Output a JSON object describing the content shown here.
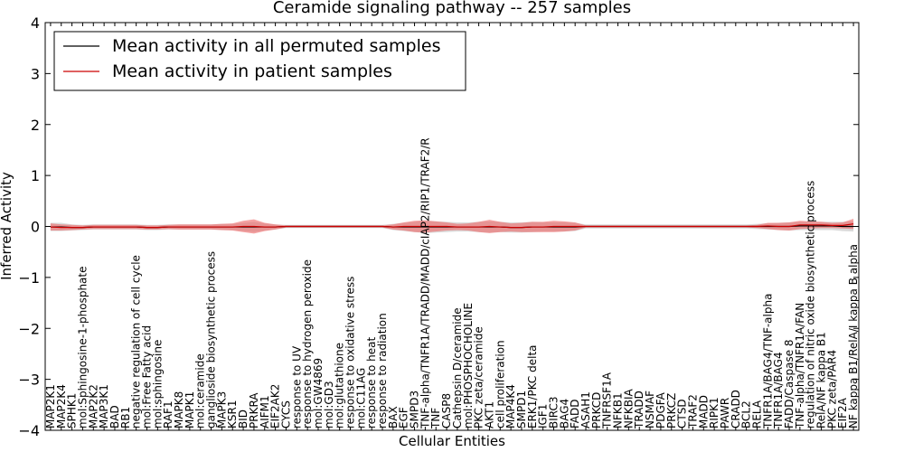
{
  "chart_data": {
    "type": "line",
    "title": "Ceramide signaling pathway -- 257 samples",
    "xlabel": "Cellular Entities",
    "ylabel": "Inferred Activity",
    "ylim": [
      -4,
      4
    ],
    "yticks": [
      -4,
      -3,
      -2,
      -1,
      0,
      1,
      2,
      3,
      4
    ],
    "ytick_labels": [
      "−4",
      "−3",
      "−2",
      "−1",
      "0",
      "1",
      "2",
      "3",
      "4"
    ],
    "grid": false,
    "legend_position": "top-left",
    "categories": [
      "MAP2K1",
      "MAP2K4",
      "SPHK1",
      "mol:Sphingosine-1-phosphate",
      "MAP2K2",
      "MAP3K1",
      "BAD",
      "RB1",
      "negative regulation of cell cycle",
      "mol:Free Fatty acid",
      "mol:sphingosine",
      "RAF1",
      "MAPK8",
      "MAPK1",
      "mol:ceramide",
      "ganglioside biosynthetic process",
      "MAPK3",
      "KSR1",
      "BID",
      "PRKRA",
      "AIFM1",
      "EIF2AK2",
      "CYCS",
      "response to UV",
      "response to hydrogen peroxide",
      "mol:GW4869",
      "mol:GD3",
      "mol:glutathione",
      "response to oxidative stress",
      "mol:C11AG",
      "response to heat",
      "response to radiation",
      "BAX",
      "EGF",
      "SMPD3",
      "TNF-alpha/TNFR1A/TRADD/MADD/cIAP2/RIP1/TRAF2/R",
      "TNF",
      "CASP8",
      "Cathepsin D/ceramide",
      "mol:PHOSPHOCHOLINE",
      "PKC zeta/ceramide",
      "AKT1",
      "cell proliferation",
      "MAP4K4",
      "SMPD1",
      "ERK1/PKC delta",
      "IGF1",
      "BIRC3",
      "BAG4",
      "FADD",
      "ASAH1",
      "PRKCD",
      "TNFRSF1A",
      "NFKB1",
      "NFKBIA",
      "TRADD",
      "NSMAF",
      "PDGFA",
      "PRKCZ",
      "CTSD",
      "TRAF2",
      "MADD",
      "RIPK1",
      "PAWR",
      "CRADD",
      "BCL2",
      "RELA",
      "TNFR1A/BAG4/TNF-alpha",
      "TNFR1A/BAG4",
      "FADD/Caspase 8",
      "TNF-alpha/TNFR1A/FAN",
      "regulation of nitric oxide biosynthetic process",
      "RelA/NF kappa B1",
      "PKC zeta/PAR4",
      "EIF2A",
      "NF kappa B1/RelA/I kappa B alpha"
    ],
    "series": [
      {
        "name": "Mean activity in all permuted samples",
        "color": "#000000",
        "band_color": "#bbbbbb",
        "values": [
          -0.01,
          -0.01,
          -0.02,
          -0.02,
          -0.01,
          -0.01,
          -0.01,
          -0.01,
          -0.01,
          -0.02,
          -0.02,
          -0.01,
          -0.01,
          -0.01,
          -0.01,
          -0.01,
          -0.01,
          -0.01,
          -0.01,
          -0.01,
          -0.01,
          -0.01,
          0.0,
          0.0,
          0.0,
          0.0,
          0.0,
          0.0,
          0.0,
          0.0,
          0.0,
          0.0,
          -0.01,
          -0.01,
          -0.01,
          -0.01,
          -0.01,
          -0.01,
          -0.01,
          -0.01,
          -0.01,
          -0.01,
          -0.01,
          -0.02,
          -0.02,
          -0.01,
          -0.01,
          -0.01,
          -0.01,
          -0.01,
          0.0,
          0.0,
          0.0,
          0.0,
          0.0,
          0.0,
          0.0,
          0.0,
          0.0,
          0.0,
          0.0,
          0.0,
          0.0,
          0.0,
          0.0,
          0.0,
          0.0,
          0.0,
          0.0,
          0.0,
          0.01,
          0.01,
          0.01,
          0.01,
          0.0,
          0.0
        ],
        "spread": [
          0.08,
          0.08,
          0.06,
          0.05,
          0.05,
          0.05,
          0.05,
          0.05,
          0.05,
          0.05,
          0.05,
          0.05,
          0.05,
          0.05,
          0.05,
          0.05,
          0.06,
          0.06,
          0.08,
          0.1,
          0.07,
          0.05,
          0.03,
          0.03,
          0.03,
          0.03,
          0.03,
          0.03,
          0.03,
          0.03,
          0.03,
          0.03,
          0.06,
          0.08,
          0.1,
          0.12,
          0.11,
          0.1,
          0.09,
          0.09,
          0.1,
          0.11,
          0.1,
          0.1,
          0.1,
          0.1,
          0.09,
          0.09,
          0.09,
          0.08,
          0.04,
          0.04,
          0.04,
          0.04,
          0.04,
          0.04,
          0.04,
          0.04,
          0.04,
          0.04,
          0.04,
          0.04,
          0.04,
          0.04,
          0.04,
          0.04,
          0.05,
          0.06,
          0.07,
          0.08,
          0.08,
          0.08,
          0.08,
          0.08,
          0.09,
          0.1
        ]
      },
      {
        "name": "Mean activity in patient samples",
        "color": "#cc0000",
        "band_color": "#ee6666",
        "values": [
          -0.01,
          -0.02,
          -0.02,
          -0.02,
          -0.01,
          -0.01,
          -0.01,
          -0.01,
          -0.01,
          -0.02,
          -0.02,
          -0.01,
          -0.01,
          -0.01,
          -0.01,
          -0.01,
          -0.01,
          -0.01,
          0.0,
          0.0,
          -0.01,
          -0.01,
          0.0,
          0.0,
          0.0,
          0.0,
          0.0,
          0.0,
          0.0,
          0.0,
          0.0,
          0.0,
          -0.01,
          0.0,
          0.0,
          0.0,
          0.0,
          0.0,
          -0.01,
          -0.01,
          -0.01,
          0.0,
          -0.01,
          -0.02,
          -0.02,
          -0.01,
          -0.01,
          0.0,
          0.0,
          0.0,
          0.0,
          0.0,
          0.0,
          0.0,
          0.0,
          0.0,
          0.0,
          0.0,
          0.0,
          0.0,
          0.0,
          0.0,
          0.0,
          0.0,
          0.0,
          0.0,
          0.0,
          0.01,
          0.0,
          0.0,
          0.03,
          0.03,
          0.03,
          0.02,
          0.02,
          0.05
        ],
        "spread": [
          0.07,
          0.06,
          0.05,
          0.04,
          0.04,
          0.04,
          0.04,
          0.04,
          0.04,
          0.04,
          0.04,
          0.04,
          0.05,
          0.05,
          0.05,
          0.05,
          0.06,
          0.07,
          0.11,
          0.14,
          0.08,
          0.05,
          0.02,
          0.02,
          0.02,
          0.02,
          0.02,
          0.02,
          0.02,
          0.02,
          0.02,
          0.02,
          0.05,
          0.08,
          0.11,
          0.12,
          0.1,
          0.08,
          0.06,
          0.07,
          0.1,
          0.13,
          0.1,
          0.08,
          0.09,
          0.1,
          0.1,
          0.11,
          0.1,
          0.08,
          0.02,
          0.02,
          0.02,
          0.02,
          0.02,
          0.02,
          0.02,
          0.02,
          0.02,
          0.02,
          0.02,
          0.02,
          0.02,
          0.02,
          0.02,
          0.02,
          0.03,
          0.06,
          0.07,
          0.08,
          0.08,
          0.07,
          0.06,
          0.05,
          0.06,
          0.1
        ]
      }
    ]
  }
}
